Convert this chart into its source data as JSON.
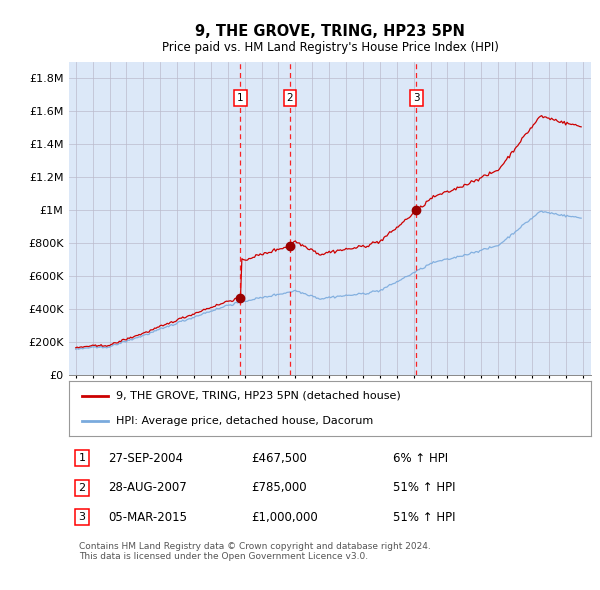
{
  "title": "9, THE GROVE, TRING, HP23 5PN",
  "subtitle": "Price paid vs. HM Land Registry's House Price Index (HPI)",
  "footer": "Contains HM Land Registry data © Crown copyright and database right 2024.\nThis data is licensed under the Open Government Licence v3.0.",
  "legend_line1": "9, THE GROVE, TRING, HP23 5PN (detached house)",
  "legend_line2": "HPI: Average price, detached house, Dacorum",
  "sale_events": [
    {
      "num": 1,
      "date": "27-SEP-2004",
      "price": "£467,500",
      "change": "6% ↑ HPI",
      "year": 2004.75
    },
    {
      "num": 2,
      "date": "28-AUG-2007",
      "price": "£785,000",
      "change": "51% ↑ HPI",
      "year": 2007.67
    },
    {
      "num": 3,
      "date": "05-MAR-2015",
      "price": "£1,000,000",
      "change": "51% ↑ HPI",
      "year": 2015.17
    }
  ],
  "sale_prices": [
    467500,
    785000,
    1000000
  ],
  "plot_bg_color": "#dce8f8",
  "red_line_color": "#cc0000",
  "blue_line_color": "#7aaadd",
  "grid_color": "#bbbbcc",
  "ylim": [
    0,
    1900000
  ],
  "yticks": [
    0,
    200000,
    400000,
    600000,
    800000,
    1000000,
    1200000,
    1400000,
    1600000,
    1800000
  ],
  "xlim_left": 1994.6,
  "xlim_right": 2025.5
}
